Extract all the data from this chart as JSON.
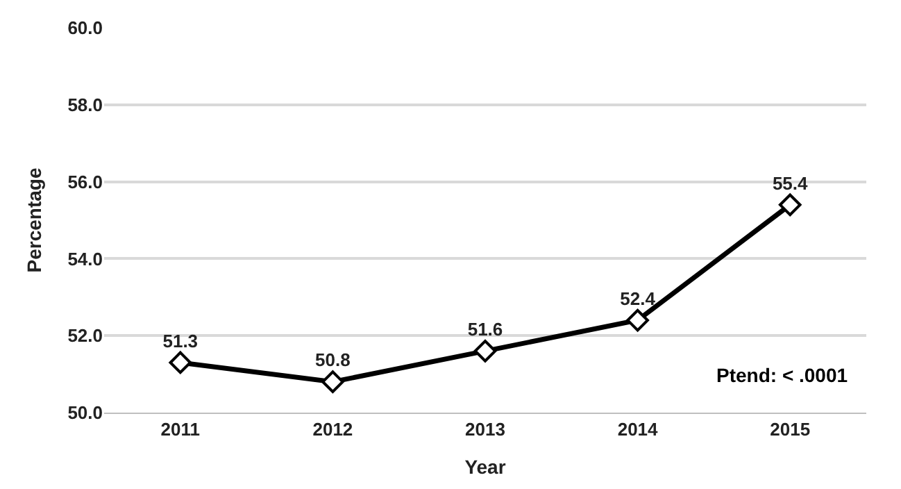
{
  "chart_data": {
    "type": "line",
    "xlabel": "Year",
    "ylabel": "Percentage",
    "categories": [
      "2011",
      "2012",
      "2013",
      "2014",
      "2015"
    ],
    "series": [
      {
        "color": "#000000",
        "values": [
          51.3,
          50.8,
          51.6,
          52.4,
          55.4
        ]
      }
    ],
    "ylim": [
      50,
      60
    ],
    "yticks": [
      {
        "value": 50,
        "label": "50.0"
      },
      {
        "value": 52,
        "label": "52.0"
      },
      {
        "value": 54,
        "label": "54.0"
      },
      {
        "value": 56,
        "label": "56.0"
      },
      {
        "value": 58,
        "label": "58.0"
      },
      {
        "value": 60,
        "label": "60.0"
      }
    ],
    "grid": "y",
    "marker": "diamond",
    "line_style": "solid",
    "data_labels": true,
    "annotations": [
      "Ptend: < .0001"
    ]
  }
}
